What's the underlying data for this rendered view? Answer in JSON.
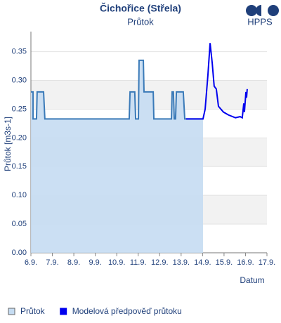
{
  "logo": "HPPS",
  "chart_data": {
    "type": "line",
    "title": "Čichořice (Střela)",
    "subtitle": "Průtok",
    "y_label": "Průtok [m3s-1]",
    "x_label": "Datum",
    "grid": true,
    "alternate_bands": true,
    "xlim": [
      6,
      17
    ],
    "ylim": [
      0,
      0.385
    ],
    "xticks": [
      {
        "value": 6,
        "label": "6.9."
      },
      {
        "value": 7,
        "label": "7.9."
      },
      {
        "value": 8,
        "label": "8.9."
      },
      {
        "value": 9,
        "label": "9.9."
      },
      {
        "value": 10,
        "label": "10.9."
      },
      {
        "value": 11,
        "label": "11.9."
      },
      {
        "value": 12,
        "label": "12.9."
      },
      {
        "value": 13,
        "label": "13.9."
      },
      {
        "value": 14,
        "label": "14.9."
      },
      {
        "value": 15,
        "label": "15.9."
      },
      {
        "value": 16,
        "label": "16.9."
      },
      {
        "value": 17,
        "label": "17.9."
      }
    ],
    "yticks": [
      {
        "value": 0,
        "label": "0.00"
      },
      {
        "value": 0.05,
        "label": "0.05"
      },
      {
        "value": 0.1,
        "label": "0.10"
      },
      {
        "value": 0.15,
        "label": "0.15"
      },
      {
        "value": 0.2,
        "label": "0.20"
      },
      {
        "value": 0.25,
        "label": "0.25"
      },
      {
        "value": 0.3,
        "label": "0.30"
      },
      {
        "value": 0.35,
        "label": "0.35"
      }
    ],
    "series": [
      {
        "name": "Průtok",
        "color": "#3a7ab8",
        "fill": "#c5dcf2",
        "x": [
          6.0,
          6.1,
          6.1,
          6.26,
          6.29,
          6.59,
          6.65,
          10.58,
          10.62,
          10.84,
          10.88,
          11.01,
          11.04,
          11.24,
          11.27,
          11.7,
          11.73,
          12.55,
          12.58,
          12.64,
          12.68,
          12.74,
          12.78,
          13.1,
          13.17,
          14.02
        ],
        "values": [
          0.28,
          0.28,
          0.233,
          0.233,
          0.28,
          0.28,
          0.233,
          0.233,
          0.28,
          0.28,
          0.233,
          0.233,
          0.335,
          0.335,
          0.28,
          0.28,
          0.233,
          0.233,
          0.28,
          0.28,
          0.233,
          0.233,
          0.28,
          0.28,
          0.233,
          0.233
        ]
      },
      {
        "name": "Modelová předpověď průtoku",
        "color": "#0000ee",
        "x": [
          13.23,
          14.02,
          14.12,
          14.25,
          14.35,
          14.45,
          14.54,
          14.64,
          14.74,
          14.97,
          15.2,
          15.53,
          15.75,
          15.85,
          15.92,
          15.95,
          16.02,
          16.05,
          16.08
        ],
        "values": [
          0.233,
          0.233,
          0.25,
          0.31,
          0.365,
          0.33,
          0.29,
          0.285,
          0.255,
          0.245,
          0.24,
          0.235,
          0.237,
          0.235,
          0.26,
          0.245,
          0.28,
          0.27,
          0.285
        ]
      }
    ]
  }
}
